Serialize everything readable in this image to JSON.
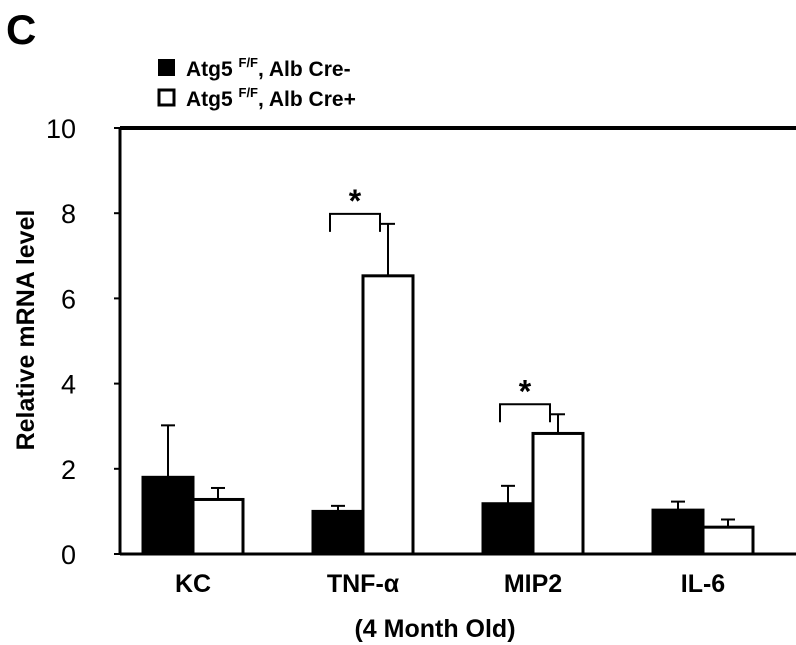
{
  "panel_label": "C",
  "chart_data": {
    "type": "bar",
    "title": "",
    "xlabel": "(4 Month Old)",
    "ylabel": "Relative mRNA level",
    "categories": [
      "KC",
      "TNF-α",
      "MIP2",
      "IL-6"
    ],
    "ylim": [
      0,
      10
    ],
    "yticks": [
      0,
      2,
      4,
      6,
      8,
      10
    ],
    "grid": false,
    "legend_position": "top-left",
    "series": [
      {
        "name": "Atg5 F/F, Alb Cre-",
        "legend_main": "Atg5 ",
        "legend_sup": "F/F",
        "legend_rest": ", Alb Cre-",
        "fill": "#000000",
        "values": [
          1.8,
          1.0,
          1.18,
          1.03
        ],
        "errors": [
          1.22,
          0.13,
          0.42,
          0.2
        ]
      },
      {
        "name": "Atg5 F/F, Alb Cre+",
        "legend_main": "Atg5 ",
        "legend_sup": "F/F",
        "legend_rest": ", Alb Cre+",
        "fill": "#ffffff",
        "values": [
          1.28,
          6.53,
          2.83,
          0.63
        ],
        "errors": [
          0.27,
          1.22,
          0.45,
          0.18
        ]
      }
    ],
    "significance": [
      {
        "category_index": 1,
        "label": "*"
      },
      {
        "category_index": 2,
        "label": "*"
      }
    ]
  }
}
